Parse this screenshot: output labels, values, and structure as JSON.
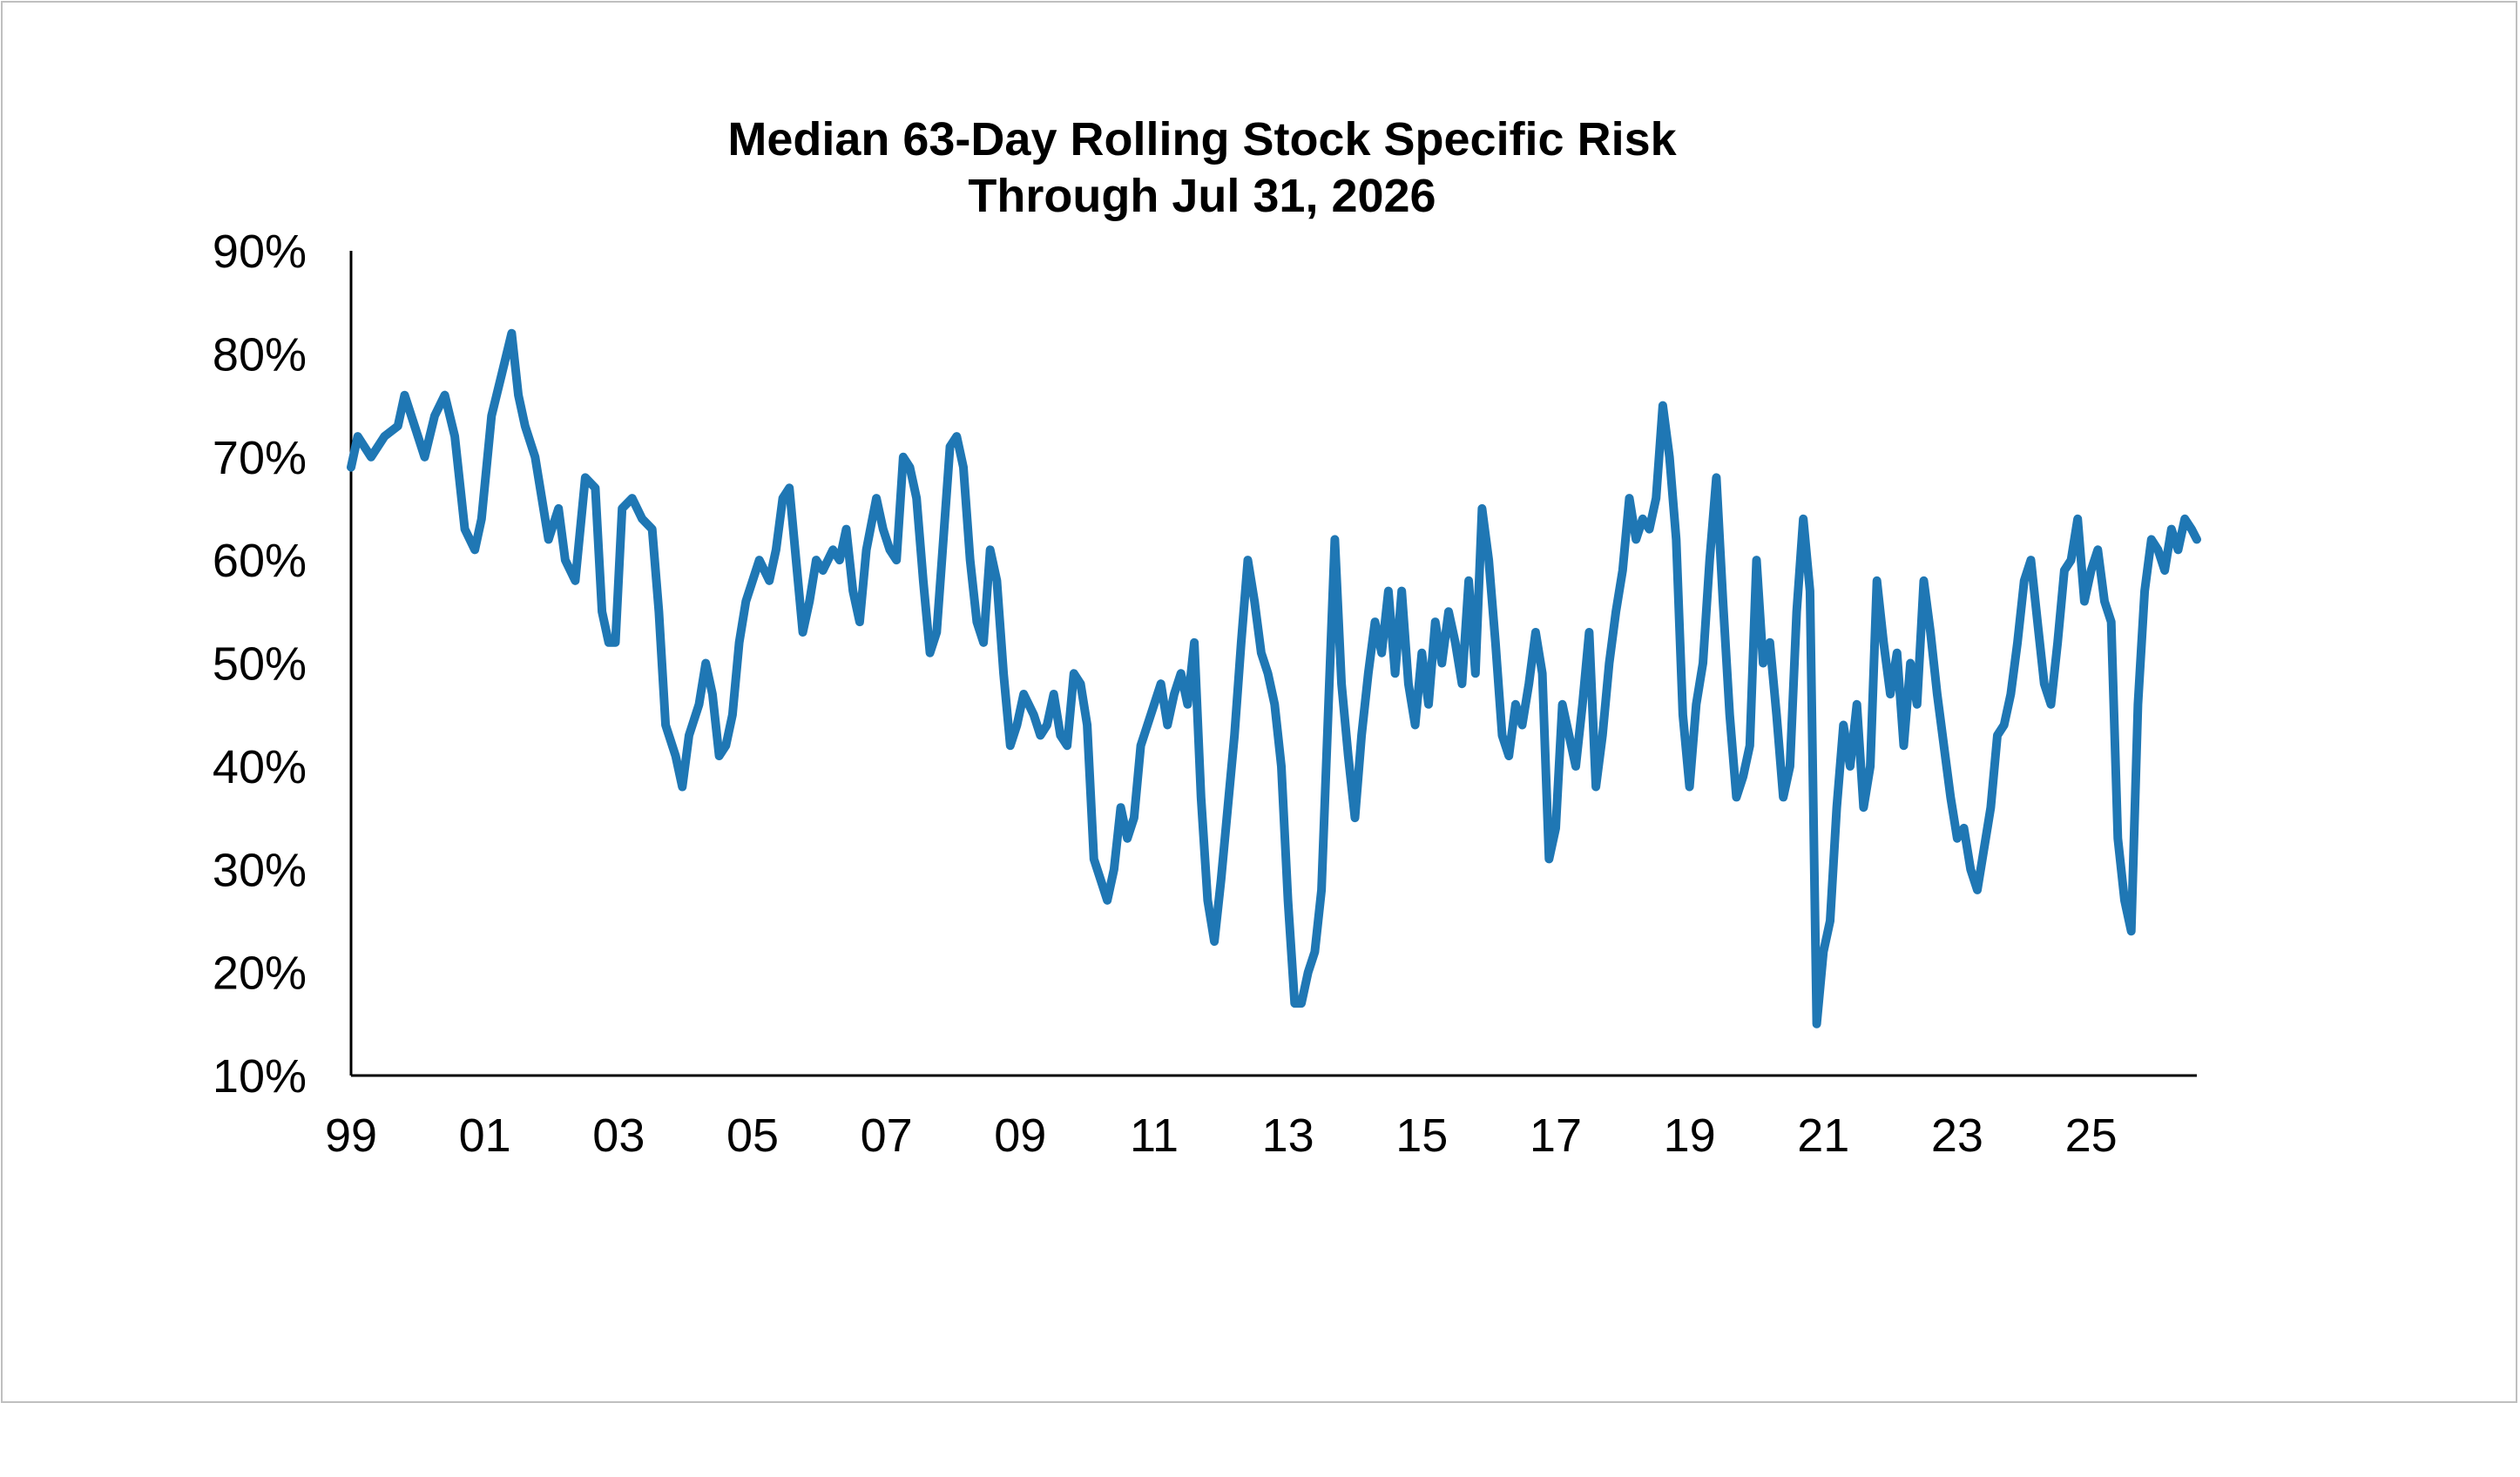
{
  "chart_data": {
    "type": "line",
    "title": "Median 63-Day Rolling Stock Specific Risk",
    "subtitle": "Through Jul 31, 2026",
    "xlabel": "",
    "ylabel": "",
    "x_tick_labels": [
      "99",
      "01",
      "03",
      "05",
      "07",
      "09",
      "11",
      "13",
      "15",
      "17",
      "19",
      "21",
      "23",
      "25"
    ],
    "y_tick_labels": [
      "10%",
      "20%",
      "30%",
      "40%",
      "50%",
      "60%",
      "70%",
      "80%",
      "90%"
    ],
    "ylim": [
      10,
      90
    ],
    "xlim": [
      1999.0,
      2026.58
    ],
    "grid": false,
    "legend": "none",
    "line_color": "#1f77b4",
    "series": [
      {
        "values": [
          [
            1999.0,
            69
          ],
          [
            1999.1,
            72
          ],
          [
            1999.3,
            70
          ],
          [
            1999.5,
            72
          ],
          [
            1999.7,
            73
          ],
          [
            1999.8,
            76
          ],
          [
            1999.95,
            73
          ],
          [
            2000.1,
            70
          ],
          [
            2000.25,
            74
          ],
          [
            2000.4,
            76
          ],
          [
            2000.55,
            72
          ],
          [
            2000.7,
            63
          ],
          [
            2000.85,
            61
          ],
          [
            2000.95,
            64
          ],
          [
            2001.1,
            74
          ],
          [
            2001.25,
            78
          ],
          [
            2001.4,
            82
          ],
          [
            2001.5,
            76
          ],
          [
            2001.6,
            73
          ],
          [
            2001.75,
            70
          ],
          [
            2001.85,
            66
          ],
          [
            2001.95,
            62
          ],
          [
            2002.1,
            65
          ],
          [
            2002.2,
            60
          ],
          [
            2002.35,
            58
          ],
          [
            2002.5,
            68
          ],
          [
            2002.65,
            67
          ],
          [
            2002.75,
            55
          ],
          [
            2002.85,
            52
          ],
          [
            2002.95,
            52
          ],
          [
            2003.05,
            65
          ],
          [
            2003.2,
            66
          ],
          [
            2003.35,
            64
          ],
          [
            2003.5,
            63
          ],
          [
            2003.6,
            55
          ],
          [
            2003.7,
            44
          ],
          [
            2003.85,
            41
          ],
          [
            2003.95,
            38
          ],
          [
            2004.05,
            43
          ],
          [
            2004.2,
            46
          ],
          [
            2004.3,
            50
          ],
          [
            2004.4,
            47
          ],
          [
            2004.5,
            41
          ],
          [
            2004.6,
            42
          ],
          [
            2004.7,
            45
          ],
          [
            2004.8,
            52
          ],
          [
            2004.9,
            56
          ],
          [
            2005.0,
            58
          ],
          [
            2005.1,
            60
          ],
          [
            2005.25,
            58
          ],
          [
            2005.35,
            61
          ],
          [
            2005.45,
            66
          ],
          [
            2005.55,
            67
          ],
          [
            2005.65,
            60
          ],
          [
            2005.75,
            53
          ],
          [
            2005.85,
            56
          ],
          [
            2005.95,
            60
          ],
          [
            2006.05,
            59
          ],
          [
            2006.2,
            61
          ],
          [
            2006.3,
            60
          ],
          [
            2006.4,
            63
          ],
          [
            2006.5,
            57
          ],
          [
            2006.6,
            54
          ],
          [
            2006.7,
            61
          ],
          [
            2006.85,
            66
          ],
          [
            2006.95,
            63
          ],
          [
            2007.05,
            61
          ],
          [
            2007.15,
            60
          ],
          [
            2007.25,
            70
          ],
          [
            2007.35,
            69
          ],
          [
            2007.45,
            66
          ],
          [
            2007.55,
            58
          ],
          [
            2007.65,
            51
          ],
          [
            2007.75,
            53
          ],
          [
            2007.85,
            62
          ],
          [
            2007.95,
            71
          ],
          [
            2008.05,
            72
          ],
          [
            2008.15,
            69
          ],
          [
            2008.25,
            60
          ],
          [
            2008.35,
            54
          ],
          [
            2008.45,
            52
          ],
          [
            2008.55,
            61
          ],
          [
            2008.65,
            58
          ],
          [
            2008.75,
            49
          ],
          [
            2008.85,
            42
          ],
          [
            2008.95,
            44
          ],
          [
            2009.05,
            47
          ],
          [
            2009.2,
            45
          ],
          [
            2009.3,
            43
          ],
          [
            2009.4,
            44
          ],
          [
            2009.5,
            47
          ],
          [
            2009.6,
            43
          ],
          [
            2009.7,
            42
          ],
          [
            2009.8,
            49
          ],
          [
            2009.9,
            48
          ],
          [
            2010.0,
            44
          ],
          [
            2010.1,
            31
          ],
          [
            2010.2,
            29
          ],
          [
            2010.3,
            27
          ],
          [
            2010.4,
            30
          ],
          [
            2010.5,
            36
          ],
          [
            2010.6,
            33
          ],
          [
            2010.7,
            35
          ],
          [
            2010.8,
            42
          ],
          [
            2010.9,
            44
          ],
          [
            2011.0,
            46
          ],
          [
            2011.1,
            48
          ],
          [
            2011.2,
            44
          ],
          [
            2011.3,
            47
          ],
          [
            2011.4,
            49
          ],
          [
            2011.5,
            46
          ],
          [
            2011.6,
            52
          ],
          [
            2011.7,
            37
          ],
          [
            2011.8,
            27
          ],
          [
            2011.9,
            23
          ],
          [
            2012.0,
            29
          ],
          [
            2012.1,
            36
          ],
          [
            2012.2,
            43
          ],
          [
            2012.3,
            52
          ],
          [
            2012.4,
            60
          ],
          [
            2012.5,
            56
          ],
          [
            2012.6,
            51
          ],
          [
            2012.7,
            49
          ],
          [
            2012.8,
            46
          ],
          [
            2012.9,
            40
          ],
          [
            2013.0,
            27
          ],
          [
            2013.1,
            17
          ],
          [
            2013.2,
            17
          ],
          [
            2013.3,
            20
          ],
          [
            2013.4,
            22
          ],
          [
            2013.5,
            28
          ],
          [
            2013.6,
            45
          ],
          [
            2013.7,
            62
          ],
          [
            2013.8,
            48
          ],
          [
            2013.9,
            41
          ],
          [
            2014.0,
            35
          ],
          [
            2014.1,
            43
          ],
          [
            2014.2,
            49
          ],
          [
            2014.3,
            54
          ],
          [
            2014.4,
            51
          ],
          [
            2014.5,
            57
          ],
          [
            2014.6,
            49
          ],
          [
            2014.7,
            57
          ],
          [
            2014.8,
            48
          ],
          [
            2014.9,
            44
          ],
          [
            2015.0,
            51
          ],
          [
            2015.1,
            46
          ],
          [
            2015.2,
            54
          ],
          [
            2015.3,
            50
          ],
          [
            2015.4,
            55
          ],
          [
            2015.5,
            52
          ],
          [
            2015.6,
            48
          ],
          [
            2015.7,
            58
          ],
          [
            2015.8,
            49
          ],
          [
            2015.9,
            65
          ],
          [
            2016.0,
            60
          ],
          [
            2016.1,
            52
          ],
          [
            2016.2,
            43
          ],
          [
            2016.3,
            41
          ],
          [
            2016.4,
            46
          ],
          [
            2016.5,
            44
          ],
          [
            2016.6,
            48
          ],
          [
            2016.7,
            53
          ],
          [
            2016.8,
            49
          ],
          [
            2016.9,
            31
          ],
          [
            2017.0,
            34
          ],
          [
            2017.1,
            46
          ],
          [
            2017.2,
            43
          ],
          [
            2017.3,
            40
          ],
          [
            2017.4,
            46
          ],
          [
            2017.5,
            53
          ],
          [
            2017.6,
            38
          ],
          [
            2017.7,
            43
          ],
          [
            2017.8,
            50
          ],
          [
            2017.9,
            55
          ],
          [
            2018.0,
            59
          ],
          [
            2018.1,
            66
          ],
          [
            2018.2,
            62
          ],
          [
            2018.3,
            64
          ],
          [
            2018.4,
            63
          ],
          [
            2018.5,
            66
          ],
          [
            2018.6,
            75
          ],
          [
            2018.7,
            70
          ],
          [
            2018.8,
            62
          ],
          [
            2018.9,
            45
          ],
          [
            2019.0,
            38
          ],
          [
            2019.1,
            46
          ],
          [
            2019.2,
            50
          ],
          [
            2019.3,
            60
          ],
          [
            2019.4,
            68
          ],
          [
            2019.5,
            56
          ],
          [
            2019.6,
            45
          ],
          [
            2019.7,
            37
          ],
          [
            2019.8,
            39
          ],
          [
            2019.9,
            42
          ],
          [
            2020.0,
            60
          ],
          [
            2020.1,
            50
          ],
          [
            2020.2,
            52
          ],
          [
            2020.3,
            45
          ],
          [
            2020.4,
            37
          ],
          [
            2020.5,
            40
          ],
          [
            2020.6,
            55
          ],
          [
            2020.7,
            64
          ],
          [
            2020.8,
            57
          ],
          [
            2020.9,
            15
          ],
          [
            2021.0,
            22
          ],
          [
            2021.1,
            25
          ],
          [
            2021.2,
            36
          ],
          [
            2021.3,
            44
          ],
          [
            2021.4,
            40
          ],
          [
            2021.5,
            46
          ],
          [
            2021.6,
            36
          ],
          [
            2021.7,
            40
          ],
          [
            2021.8,
            58
          ],
          [
            2021.9,
            52
          ],
          [
            2022.0,
            47
          ],
          [
            2022.1,
            51
          ],
          [
            2022.2,
            42
          ],
          [
            2022.3,
            50
          ],
          [
            2022.4,
            46
          ],
          [
            2022.5,
            58
          ],
          [
            2022.6,
            53
          ],
          [
            2022.7,
            47
          ],
          [
            2022.8,
            42
          ],
          [
            2022.9,
            37
          ],
          [
            2023.0,
            33
          ],
          [
            2023.1,
            34
          ],
          [
            2023.2,
            30
          ],
          [
            2023.3,
            28
          ],
          [
            2023.4,
            32
          ],
          [
            2023.5,
            36
          ],
          [
            2023.6,
            43
          ],
          [
            2023.7,
            44
          ],
          [
            2023.8,
            47
          ],
          [
            2023.9,
            52
          ],
          [
            2024.0,
            58
          ],
          [
            2024.1,
            60
          ],
          [
            2024.2,
            54
          ],
          [
            2024.3,
            48
          ],
          [
            2024.4,
            46
          ],
          [
            2024.5,
            52
          ],
          [
            2024.6,
            59
          ],
          [
            2024.7,
            60
          ],
          [
            2024.8,
            64
          ],
          [
            2024.9,
            56
          ],
          [
            2025.0,
            59
          ],
          [
            2025.1,
            61
          ],
          [
            2025.2,
            56
          ],
          [
            2025.3,
            54
          ],
          [
            2025.4,
            33
          ],
          [
            2025.5,
            27
          ],
          [
            2025.6,
            24
          ],
          [
            2025.7,
            46
          ],
          [
            2025.8,
            57
          ],
          [
            2025.9,
            62
          ],
          [
            2026.0,
            61
          ],
          [
            2026.1,
            59
          ],
          [
            2026.2,
            63
          ],
          [
            2026.3,
            61
          ],
          [
            2026.4,
            64
          ],
          [
            2026.5,
            63
          ],
          [
            2026.58,
            62
          ]
        ]
      }
    ]
  }
}
